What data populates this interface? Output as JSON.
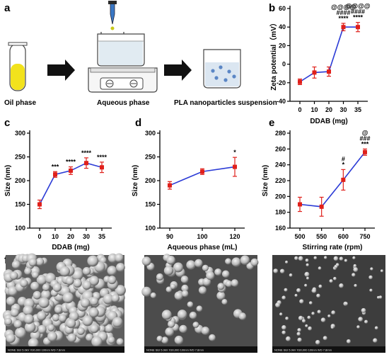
{
  "panels": {
    "a": {
      "letter": "a",
      "labels": {
        "oil": "Oil phase",
        "aqueous": "Aqueous phase",
        "suspension": "PLA nanoparticles suspension"
      }
    },
    "f": {
      "letter": "f",
      "images": [
        {
          "footer": "NONE        SEI   5.0kV  X30,000  100nm  WD 7.8mm"
        },
        {
          "footer": "NONE        SEI   5.0kV  X30,000  100nm  WD 7.8mm"
        },
        {
          "footer": "NONE        SEI   5.0kV  X30,000  100nm  WD 7.8mm"
        }
      ]
    }
  },
  "colors": {
    "line": "#2b3bd6",
    "marker": "#e0201b",
    "axis": "#000000",
    "oil_liquid": "#f2e21c",
    "arrow": "#111111"
  },
  "chart_data": [
    {
      "id": "b",
      "letter": "b",
      "type": "line",
      "xlabel": "DDAB (mg)",
      "ylabel": "Zeta potential（mV）",
      "x_ticks": [
        "0",
        "10",
        "20",
        "30",
        "35"
      ],
      "y_ticks": [
        -40,
        -20,
        0,
        20,
        40,
        60
      ],
      "ylim": [
        -40,
        60
      ],
      "values": [
        -19,
        -9,
        -8,
        40,
        40
      ],
      "errors": [
        3,
        6,
        5,
        4,
        5
      ],
      "annotations": [
        {
          "index": 3,
          "lines": [
            "@@@@",
            "####",
            "****"
          ]
        },
        {
          "index": 4,
          "lines": [
            "@@@@",
            "####",
            "****"
          ]
        }
      ]
    },
    {
      "id": "c",
      "letter": "c",
      "type": "line",
      "xlabel": "DDAB (mg)",
      "ylabel": "Size (nm)",
      "x_ticks": [
        "0",
        "10",
        "20",
        "30",
        "35"
      ],
      "y_ticks": [
        100,
        150,
        200,
        250,
        300
      ],
      "ylim": [
        100,
        300
      ],
      "values": [
        150,
        213,
        221,
        237,
        228
      ],
      "errors": [
        9,
        6,
        8,
        11,
        11
      ],
      "annotations": [
        {
          "index": 1,
          "lines": [
            "***"
          ]
        },
        {
          "index": 2,
          "lines": [
            "****"
          ]
        },
        {
          "index": 3,
          "lines": [
            "****"
          ]
        },
        {
          "index": 4,
          "lines": [
            "****"
          ]
        }
      ]
    },
    {
      "id": "d",
      "letter": "d",
      "type": "line",
      "xlabel": "Aqueous phase (mL)",
      "ylabel": "Size (nm)",
      "x_ticks": [
        "90",
        "100",
        "120"
      ],
      "y_ticks": [
        100,
        150,
        200,
        250,
        300
      ],
      "ylim": [
        100,
        300
      ],
      "values": [
        190,
        219,
        229
      ],
      "errors": [
        8,
        6,
        20
      ],
      "annotations": [
        {
          "index": 2,
          "lines": [
            "*"
          ]
        }
      ]
    },
    {
      "id": "e",
      "letter": "e",
      "type": "line",
      "xlabel": "Stirring rate (rpm)",
      "ylabel": "Size (nm)",
      "x_ticks": [
        "500",
        "550",
        "600",
        "750"
      ],
      "y_ticks": [
        160,
        180,
        200,
        220,
        240,
        260,
        280
      ],
      "ylim": [
        160,
        280
      ],
      "values": [
        190,
        187,
        221,
        256
      ],
      "errors": [
        9,
        12,
        13,
        4
      ],
      "annotations": [
        {
          "index": 2,
          "lines": [
            "#",
            "*"
          ]
        },
        {
          "index": 3,
          "lines": [
            "@",
            "###",
            "***"
          ]
        }
      ]
    }
  ]
}
